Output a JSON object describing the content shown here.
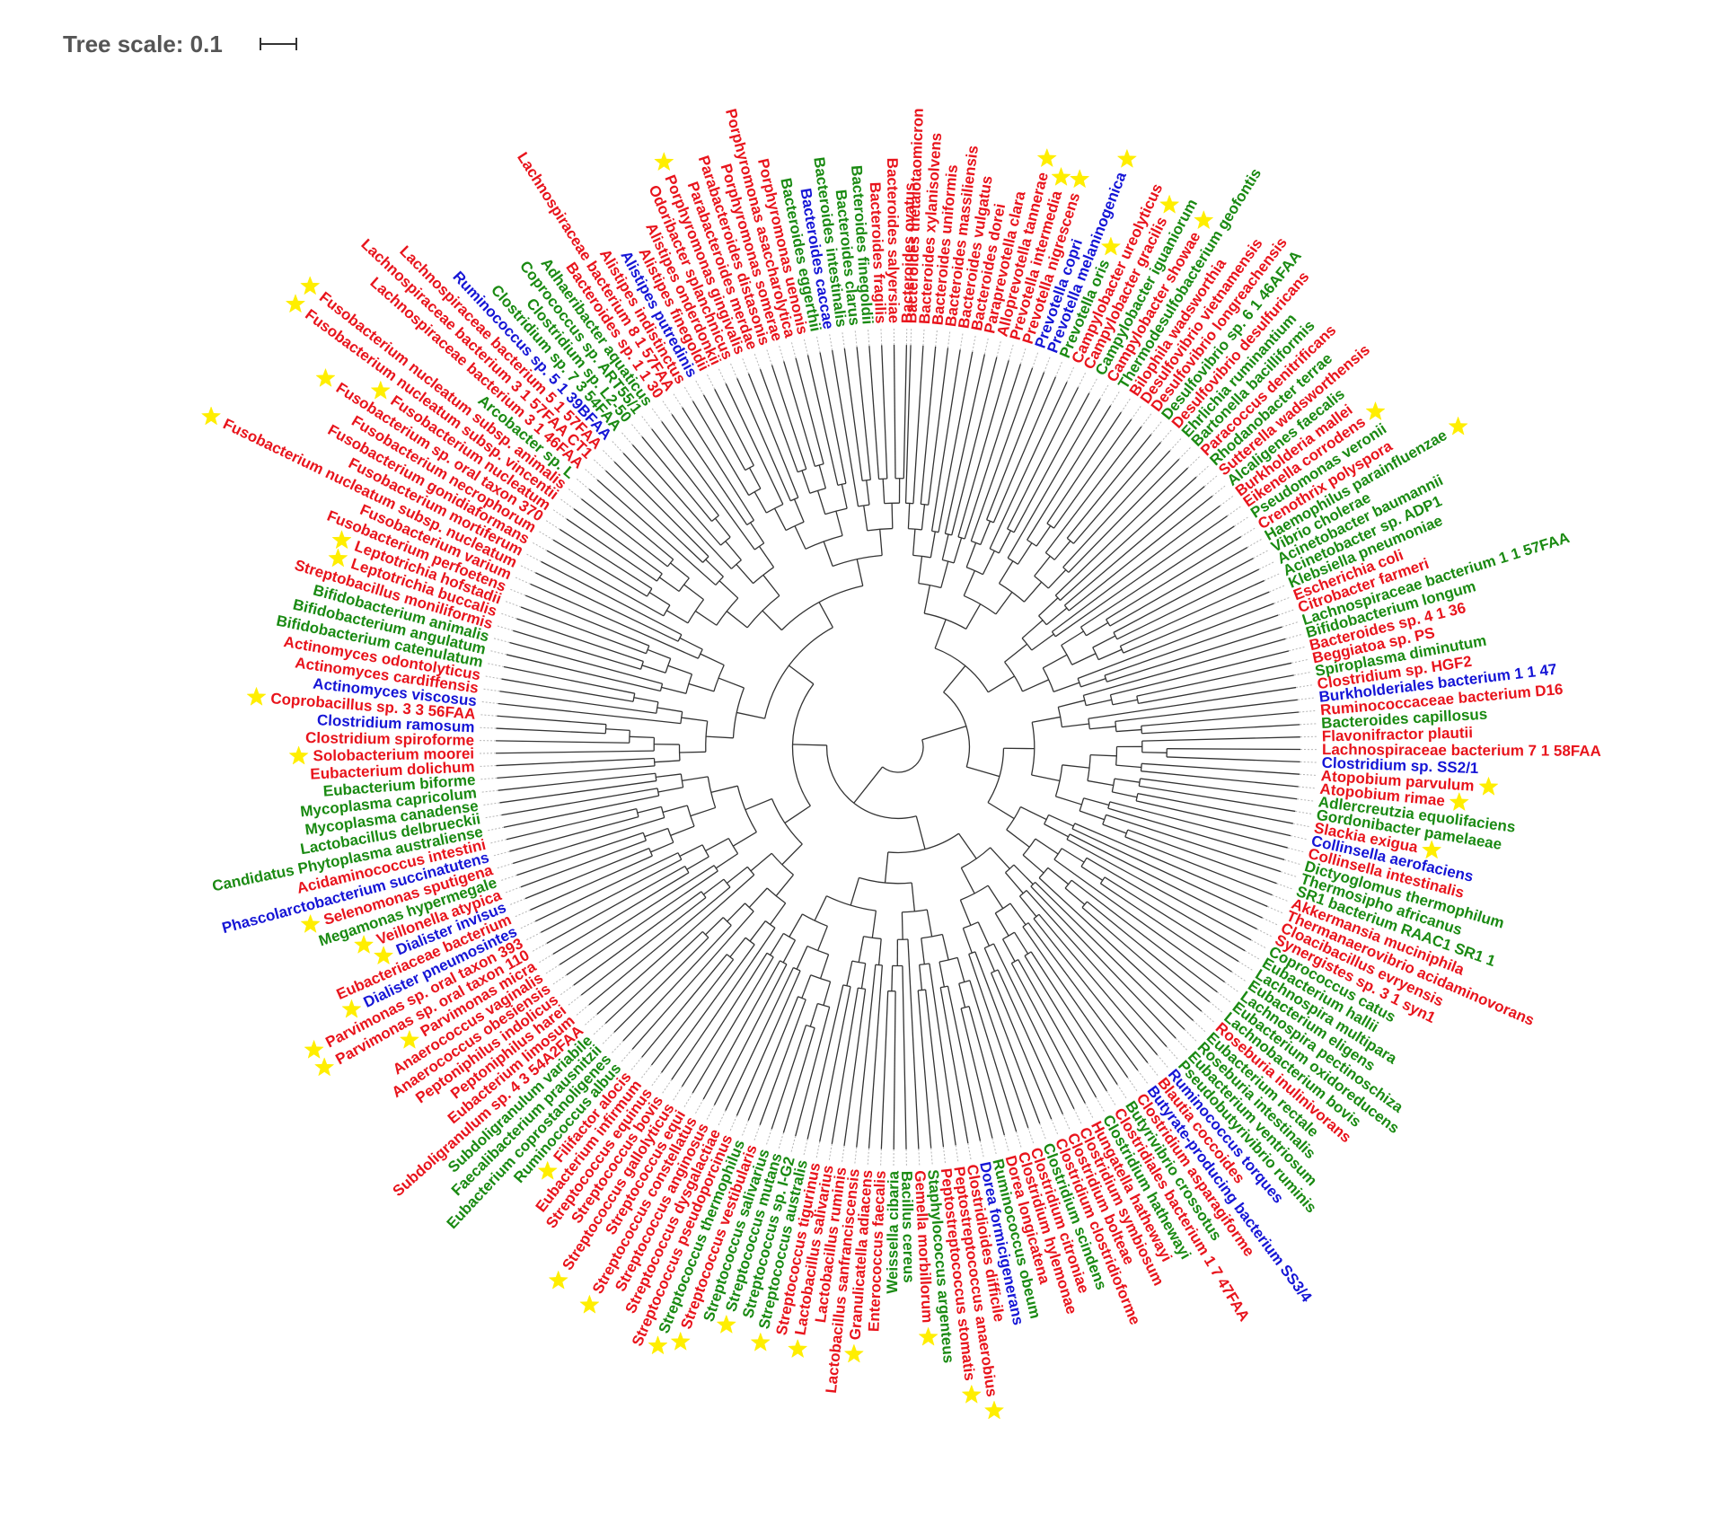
{
  "scale": {
    "label": "Tree scale: 0.1"
  },
  "colors": {
    "red": "#e8141c",
    "green": "#1a8a12",
    "blue": "#1515d6",
    "star": "#ffee00",
    "branch": "#333333"
  },
  "leaves": [
    {
      "name": "Bacteroides thetaiotaomicron",
      "color": "red",
      "star": false
    },
    {
      "name": "Bacteroides xylanisolvens",
      "color": "red",
      "star": false
    },
    {
      "name": "Bacteroides uniformis",
      "color": "red",
      "star": false
    },
    {
      "name": "Bacteroides massiliensis",
      "color": "red",
      "star": false
    },
    {
      "name": "Bacteroides vulgatus",
      "color": "red",
      "star": false
    },
    {
      "name": "Bacteroides dorei",
      "color": "red",
      "star": false
    },
    {
      "name": "Paraprevotella clara",
      "color": "red",
      "star": false
    },
    {
      "name": "Alloprevotella tannerae",
      "color": "red",
      "star": true
    },
    {
      "name": "Prevotella intermedia",
      "color": "red",
      "star": true
    },
    {
      "name": "Prevotella nigrescens",
      "color": "red",
      "star": true
    },
    {
      "name": "Prevotella copri",
      "color": "blue",
      "star": false
    },
    {
      "name": "Prevotella melaninogenica",
      "color": "blue",
      "star": true
    },
    {
      "name": "Prevotella oris",
      "color": "green",
      "star": true
    },
    {
      "name": "Campylobacter ureolyticus",
      "color": "red",
      "star": false
    },
    {
      "name": "Campylobacter gracilis",
      "color": "red",
      "star": true
    },
    {
      "name": "Campylobacter iguaniorum",
      "color": "green",
      "star": false
    },
    {
      "name": "Campylobacter showae",
      "color": "red",
      "star": true
    },
    {
      "name": "Thermodesulfobacterium geofontis",
      "color": "green",
      "star": false
    },
    {
      "name": "Bilophila wadsworthia",
      "color": "red",
      "star": false
    },
    {
      "name": "Desulfovibrio vietnamensis",
      "color": "red",
      "star": false
    },
    {
      "name": "Desulfovibrio longreachensis",
      "color": "red",
      "star": false
    },
    {
      "name": "Desulfovibrio sp. 6 1 46AFAA",
      "color": "green",
      "star": false
    },
    {
      "name": "Desulfovibrio desulfuricans",
      "color": "red",
      "star": false
    },
    {
      "name": "Ehrlichia ruminantium",
      "color": "green",
      "star": false
    },
    {
      "name": "Bartonella bacilliformis",
      "color": "green",
      "star": false
    },
    {
      "name": "Paracoccus denitrificans",
      "color": "red",
      "star": false
    },
    {
      "name": "Rhodanobacter terrae",
      "color": "green",
      "star": false
    },
    {
      "name": "Sutterella wadsworthensis",
      "color": "red",
      "star": false
    },
    {
      "name": "Alcaligenes faecalis",
      "color": "green",
      "star": false
    },
    {
      "name": "Burkholderia mallei",
      "color": "red",
      "star": false
    },
    {
      "name": "Eikenella corrodens",
      "color": "red",
      "star": true
    },
    {
      "name": "Pseudomonas veronii",
      "color": "green",
      "star": false
    },
    {
      "name": "Crenothrix polyspora",
      "color": "red",
      "star": false
    },
    {
      "name": "Haemophilus parainfluenzae",
      "color": "green",
      "star": true
    },
    {
      "name": "Vibrio cholerae",
      "color": "green",
      "star": false
    },
    {
      "name": "Acinetobacter baumannii",
      "color": "green",
      "star": false
    },
    {
      "name": "Acinetobacter sp. ADP1",
      "color": "green",
      "star": false
    },
    {
      "name": "Klebsiella pneumoniae",
      "color": "green",
      "star": false
    },
    {
      "name": "Escherichia coli",
      "color": "red",
      "star": false
    },
    {
      "name": "Citrobacter farmeri",
      "color": "red",
      "star": false
    },
    {
      "name": "Lachnospiraceae bacterium 1 1 57FAA",
      "color": "green",
      "star": false
    },
    {
      "name": "Bifidobacterium longum",
      "color": "green",
      "star": false
    },
    {
      "name": "Bacteroides sp. 4 1 36",
      "color": "red",
      "star": false
    },
    {
      "name": "Beggiatoa sp. PS",
      "color": "red",
      "star": false
    },
    {
      "name": "Spiroplasma diminutum",
      "color": "green",
      "star": false
    },
    {
      "name": "Clostridium sp. HGF2",
      "color": "red",
      "star": false
    },
    {
      "name": "Burkholderiales bacterium 1 1 47",
      "color": "blue",
      "star": false
    },
    {
      "name": "Ruminococcaceae bacterium D16",
      "color": "red",
      "star": false
    },
    {
      "name": "Bacteroides capillosus",
      "color": "green",
      "star": false
    },
    {
      "name": "Flavonifractor plautii",
      "color": "red",
      "star": false
    },
    {
      "name": "Lachnospiraceae bacterium 7 1 58FAA",
      "color": "red",
      "star": false
    },
    {
      "name": "Clostridium sp. SS2/1",
      "color": "blue",
      "star": false
    },
    {
      "name": "Atopobium parvulum",
      "color": "red",
      "star": true
    },
    {
      "name": "Atopobium rimae",
      "color": "red",
      "star": true
    },
    {
      "name": "Adlercreutzia equolifaciens",
      "color": "green",
      "star": false
    },
    {
      "name": "Gordonibacter pamelaeae",
      "color": "green",
      "star": false
    },
    {
      "name": "Slackia exigua",
      "color": "red",
      "star": true
    },
    {
      "name": "Collinsella aerofaciens",
      "color": "blue",
      "star": false
    },
    {
      "name": "Collinsella intestinalis",
      "color": "red",
      "star": false
    },
    {
      "name": "Dictyoglomus thermophilum",
      "color": "green",
      "star": false
    },
    {
      "name": "Thermosipho africanus",
      "color": "green",
      "star": false
    },
    {
      "name": "SR1 bacterium RAAC1 SR1 1",
      "color": "green",
      "star": false
    },
    {
      "name": "Akkermansia muciniphila",
      "color": "red",
      "star": false
    },
    {
      "name": "Thermanaerovibrio acidaminovorans",
      "color": "red",
      "star": false
    },
    {
      "name": "Cloacibacillus evryensis",
      "color": "red",
      "star": false
    },
    {
      "name": "Synergistes sp. 3 1 syn1",
      "color": "red",
      "star": false
    },
    {
      "name": "Coprococcus catus",
      "color": "green",
      "star": false
    },
    {
      "name": "Eubacterium hallii",
      "color": "green",
      "star": false
    },
    {
      "name": "Lachnospira multipara",
      "color": "green",
      "star": false
    },
    {
      "name": "Eubacterium eligens",
      "color": "green",
      "star": false
    },
    {
      "name": "Lachnospira pectinoschiza",
      "color": "green",
      "star": false
    },
    {
      "name": "Eubacterium oxidoreducens",
      "color": "green",
      "star": false
    },
    {
      "name": "Lachnobacterium bovis",
      "color": "green",
      "star": false
    },
    {
      "name": "Roseburia inulinivorans",
      "color": "red",
      "star": false
    },
    {
      "name": "Eubacterium rectale",
      "color": "green",
      "star": false
    },
    {
      "name": "Roseburia intestinalis",
      "color": "green",
      "star": false
    },
    {
      "name": "Eubacterium ventriosum",
      "color": "green",
      "star": false
    },
    {
      "name": "Pseudobutyrivibrio ruminis",
      "color": "green",
      "star": false
    },
    {
      "name": "Ruminococcus torques",
      "color": "blue",
      "star": false
    },
    {
      "name": "Blautia coccoides",
      "color": "red",
      "star": false
    },
    {
      "name": "Butyrate-producing bacterium SS3/4",
      "color": "blue",
      "star": false
    },
    {
      "name": "Clostridium asparagiforme",
      "color": "red",
      "star": false
    },
    {
      "name": "Butyrivibrio crossotus",
      "color": "green",
      "star": false
    },
    {
      "name": "Clostridiales bacterium 1 7 47FAA",
      "color": "red",
      "star": false
    },
    {
      "name": "Clostridium hathewayi",
      "color": "green",
      "star": false
    },
    {
      "name": "Hungatella hathewayi",
      "color": "red",
      "star": false
    },
    {
      "name": "Clostridium symbiosum",
      "color": "red",
      "star": false
    },
    {
      "name": "Clostridium bolteae",
      "color": "red",
      "star": false
    },
    {
      "name": "Clostridium clostridioforme",
      "color": "red",
      "star": false
    },
    {
      "name": "Clostridium scindens",
      "color": "green",
      "star": false
    },
    {
      "name": "Clostridium citroniae",
      "color": "red",
      "star": false
    },
    {
      "name": "Clostridium hylemonae",
      "color": "red",
      "star": false
    },
    {
      "name": "Dorea longicatena",
      "color": "red",
      "star": false
    },
    {
      "name": "Ruminococcus obeum",
      "color": "green",
      "star": false
    },
    {
      "name": "Dorea formicigenerans",
      "color": "blue",
      "star": false
    },
    {
      "name": "Clostridioides difficile",
      "color": "red",
      "star": false
    },
    {
      "name": "Peptostreptococcus anaerobius",
      "color": "red",
      "star": true
    },
    {
      "name": "Peptostreptococcus stomatis",
      "color": "red",
      "star": true
    },
    {
      "name": "Staphylococcus argenteus",
      "color": "green",
      "star": false
    },
    {
      "name": "Gemella morbillorum",
      "color": "red",
      "star": true
    },
    {
      "name": "Bacillus cereus",
      "color": "green",
      "star": false
    },
    {
      "name": "Weissella cibaria",
      "color": "green",
      "star": false
    },
    {
      "name": "Enterococcus faecalis",
      "color": "red",
      "star": false
    },
    {
      "name": "Granulicatella adiacens",
      "color": "red",
      "star": true
    },
    {
      "name": "Lactobacillus sanfranciscensis",
      "color": "red",
      "star": false
    },
    {
      "name": "Lactobacillus ruminis",
      "color": "red",
      "star": false
    },
    {
      "name": "Lactobacillus salivarius",
      "color": "red",
      "star": true
    },
    {
      "name": "Streptococcus tigurinus",
      "color": "red",
      "star": false
    },
    {
      "name": "Streptococcus australis",
      "color": "green",
      "star": true
    },
    {
      "name": "Streptococcus sp. I-G2",
      "color": "green",
      "star": false
    },
    {
      "name": "Streptococcus mutans",
      "color": "green",
      "star": true
    },
    {
      "name": "Streptococcus salivarius",
      "color": "green",
      "star": false
    },
    {
      "name": "Streptococcus vestibularis",
      "color": "red",
      "star": true
    },
    {
      "name": "Streptococcus thermophilus",
      "color": "green",
      "star": true
    },
    {
      "name": "Streptococcus pseudoporcinus",
      "color": "red",
      "star": false
    },
    {
      "name": "Streptococcus dysgalactiae",
      "color": "red",
      "star": false
    },
    {
      "name": "Streptococcus anginosus",
      "color": "red",
      "star": false
    },
    {
      "name": "Streptococcus constellatus",
      "color": "red",
      "star": true
    },
    {
      "name": "Streptococcus equi",
      "color": "red",
      "star": false
    },
    {
      "name": "Streptococcus gallolyticus",
      "color": "red",
      "star": true
    },
    {
      "name": "Streptococcus bovis",
      "color": "red",
      "star": false
    },
    {
      "name": "Streptococcus equinus",
      "color": "red",
      "star": false
    },
    {
      "name": "Eubacterium infirmum",
      "color": "red",
      "star": false
    },
    {
      "name": "Filifactor alocis",
      "color": "red",
      "star": true
    },
    {
      "name": "Ruminococcus albus",
      "color": "green",
      "star": false
    },
    {
      "name": "Eubacterium coprostanoligenes",
      "color": "green",
      "star": false
    },
    {
      "name": "Faecalibacterium prausnitzii",
      "color": "green",
      "star": false
    },
    {
      "name": "Subdoligranulum variabile",
      "color": "green",
      "star": false
    },
    {
      "name": "Subdoligranulum sp. 4 3 54A2FAA",
      "color": "red",
      "star": false
    },
    {
      "name": "Eubacterium limosum",
      "color": "red",
      "star": false
    },
    {
      "name": "Peptoniphilus harei",
      "color": "red",
      "star": false
    },
    {
      "name": "Peptoniphilus indolicus",
      "color": "red",
      "star": false
    },
    {
      "name": "Anaerococcus obesiensis",
      "color": "red",
      "star": false
    },
    {
      "name": "Anaerococcus vaginalis",
      "color": "red",
      "star": false
    },
    {
      "name": "Parvimonas micra",
      "color": "red",
      "star": true
    },
    {
      "name": "Parvimonas sp. oral taxon 110",
      "color": "red",
      "star": true
    },
    {
      "name": "Parvimonas sp. oral taxon 393",
      "color": "red",
      "star": true
    },
    {
      "name": "Dialister pneumosintes",
      "color": "blue",
      "star": true
    },
    {
      "name": "Eubacteriaceae bacterium",
      "color": "red",
      "star": false
    },
    {
      "name": "Dialister invisus",
      "color": "blue",
      "star": true
    },
    {
      "name": "Veillonella atypica",
      "color": "red",
      "star": true
    },
    {
      "name": "Megamonas hypermegale",
      "color": "green",
      "star": false
    },
    {
      "name": "Selenomonas sputigena",
      "color": "red",
      "star": true
    },
    {
      "name": "Phascolarctobacterium succinatutens",
      "color": "blue",
      "star": false
    },
    {
      "name": "Acidaminococcus intestini",
      "color": "red",
      "star": false
    },
    {
      "name": "Candidatus Phytoplasma australiense",
      "color": "green",
      "star": false
    },
    {
      "name": "Lactobacillus delbrueckii",
      "color": "green",
      "star": false
    },
    {
      "name": "Mycoplasma canadense",
      "color": "green",
      "star": false
    },
    {
      "name": "Mycoplasma capricolum",
      "color": "green",
      "star": false
    },
    {
      "name": "Eubacterium biforme",
      "color": "green",
      "star": false
    },
    {
      "name": "Eubacterium dolichum",
      "color": "red",
      "star": false
    },
    {
      "name": "Solobacterium moorei",
      "color": "red",
      "star": true
    },
    {
      "name": "Clostridium spiroforme",
      "color": "red",
      "star": false
    },
    {
      "name": "Clostridium ramosum",
      "color": "blue",
      "star": false
    },
    {
      "name": "Coprobacillus sp. 3 3 56FAA",
      "color": "red",
      "star": true
    },
    {
      "name": "Actinomyces viscosus",
      "color": "blue",
      "star": false
    },
    {
      "name": "Actinomyces cardiffensis",
      "color": "red",
      "star": false
    },
    {
      "name": "Actinomyces odontolyticus",
      "color": "red",
      "star": false
    },
    {
      "name": "Bifidobacterium catenulatum",
      "color": "green",
      "star": false
    },
    {
      "name": "Bifidobacterium angulatum",
      "color": "green",
      "star": false
    },
    {
      "name": "Bifidobacterium animalis",
      "color": "green",
      "star": false
    },
    {
      "name": "Streptobacillus moniliformis",
      "color": "red",
      "star": false
    },
    {
      "name": "Leptotrichia buccalis",
      "color": "red",
      "star": true
    },
    {
      "name": "Leptotrichia hofstadii",
      "color": "red",
      "star": true
    },
    {
      "name": "Fusobacterium perfoetens",
      "color": "red",
      "star": false
    },
    {
      "name": "Fusobacterium varium",
      "color": "red",
      "star": false
    },
    {
      "name": "Fusobacterium nucleatum subsp. nucleatum",
      "color": "red",
      "star": true
    },
    {
      "name": "Fusobacterium mortiferum",
      "color": "red",
      "star": false
    },
    {
      "name": "Fusobacterium gonidiaformans",
      "color": "red",
      "star": false
    },
    {
      "name": "Fusobacterium necrophorum",
      "color": "red",
      "star": false
    },
    {
      "name": "Fusobacterium sp. oral taxon 370",
      "color": "red",
      "star": true
    },
    {
      "name": "Fusobacterium nucleatum",
      "color": "red",
      "star": true
    },
    {
      "name": "Fusobacterium nucleatum subsp. vincentii",
      "color": "red",
      "star": true
    },
    {
      "name": "Fusobacterium nucleatum subsp. animalis",
      "color": "red",
      "star": true
    },
    {
      "name": "Arcobacter sp. L",
      "color": "green",
      "star": false
    },
    {
      "name": "Lachnospiraceae bacterium 3 1 46FAA",
      "color": "red",
      "star": false
    },
    {
      "name": "Lachnospiraceae bacterium 3 1 57FAA CT1",
      "color": "red",
      "star": false
    },
    {
      "name": "Lachnospiraceae bacterium 5 1 57FAA",
      "color": "red",
      "star": false
    },
    {
      "name": "Ruminococcus sp. 5 1 39BFAA",
      "color": "blue",
      "star": false
    },
    {
      "name": "Clostridium sp. 7 3 54FAA",
      "color": "green",
      "star": false
    },
    {
      "name": "Clostridium sp. L2-50",
      "color": "green",
      "star": false
    },
    {
      "name": "Coprococcus sp. ART55/1",
      "color": "green",
      "star": false
    },
    {
      "name": "Adhaeribacter aquaticus",
      "color": "green",
      "star": false
    },
    {
      "name": "Bacteroides sp. 1 1 30",
      "color": "red",
      "star": false
    },
    {
      "name": "Lachnospiraceae bacterium 8 1 57FAA",
      "color": "red",
      "star": false
    },
    {
      "name": "Alistipes indistinctus",
      "color": "red",
      "star": false
    },
    {
      "name": "Alistipes putredinis",
      "color": "blue",
      "star": false
    },
    {
      "name": "Alistipes finegoldii",
      "color": "red",
      "star": false
    },
    {
      "name": "Alistipes onderdonkii",
      "color": "red",
      "star": false
    },
    {
      "name": "Odoribacter splanchnicus",
      "color": "red",
      "star": false
    },
    {
      "name": "Porphyromonas gingivalis",
      "color": "red",
      "star": true
    },
    {
      "name": "Parabacteroides merdae",
      "color": "red",
      "star": false
    },
    {
      "name": "Parabacteroides distasonis",
      "color": "red",
      "star": false
    },
    {
      "name": "Porphyromonas somerae",
      "color": "red",
      "star": false
    },
    {
      "name": "Porphyromonas asaccharolytica",
      "color": "red",
      "star": false
    },
    {
      "name": "Porphyromonas uenonis",
      "color": "red",
      "star": false
    },
    {
      "name": "Bacteroides eggerthii",
      "color": "green",
      "star": false
    },
    {
      "name": "Bacteroides caccae",
      "color": "blue",
      "star": false
    },
    {
      "name": "Bacteroides intestinalis",
      "color": "green",
      "star": false
    },
    {
      "name": "Bacteroides clarus",
      "color": "green",
      "star": false
    },
    {
      "name": "Bacteroides finegoldii",
      "color": "green",
      "star": false
    },
    {
      "name": "Bacteroides fragilis",
      "color": "red",
      "star": false
    },
    {
      "name": "Bacteroides salyersiae",
      "color": "red",
      "star": false
    },
    {
      "name": "Bacteroides ovatus",
      "color": "red",
      "star": false
    }
  ]
}
